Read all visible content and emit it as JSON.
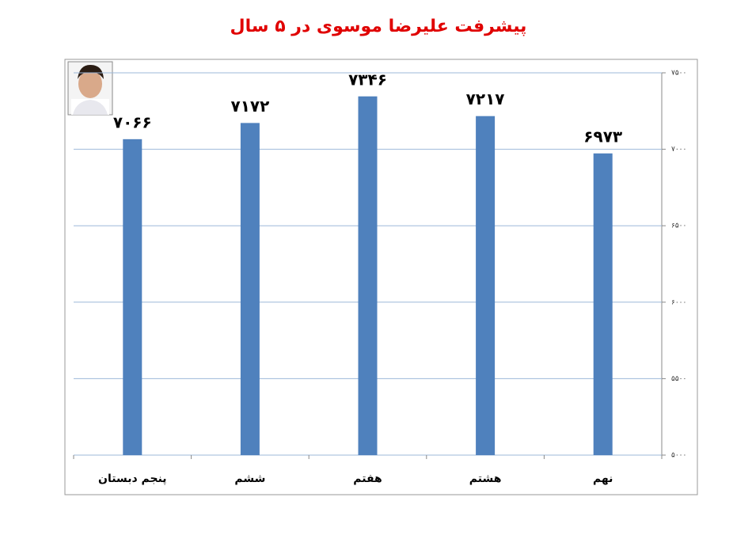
{
  "chart_data": {
    "type": "bar",
    "title": "پیشرفت علیرضا موسوی در ۵ سال",
    "categories": [
      "پنجم دبستان",
      "ششم",
      "هفتم",
      "هشتم",
      "نهم"
    ],
    "values": [
      7066,
      7172,
      7346,
      7217,
      6973
    ],
    "value_labels": [
      "۷۰۶۶",
      "۷۱۷۲",
      "۷۳۴۶",
      "۷۲۱۷",
      "۶۹۷۳"
    ],
    "color": "#4f81bd",
    "ylim": [
      5000,
      7500
    ],
    "yticks": [
      {
        "value": 5000,
        "label": "۵۰۰۰"
      },
      {
        "value": 5500,
        "label": "۵۵۰۰"
      },
      {
        "value": 6000,
        "label": "۶۰۰۰"
      },
      {
        "value": 6500,
        "label": "۶۵۰۰"
      },
      {
        "value": 7000,
        "label": "۷۰۰۰"
      },
      {
        "value": 7500,
        "label": "۷۵۰۰"
      }
    ],
    "grid": true,
    "y_axis_side": "right"
  }
}
